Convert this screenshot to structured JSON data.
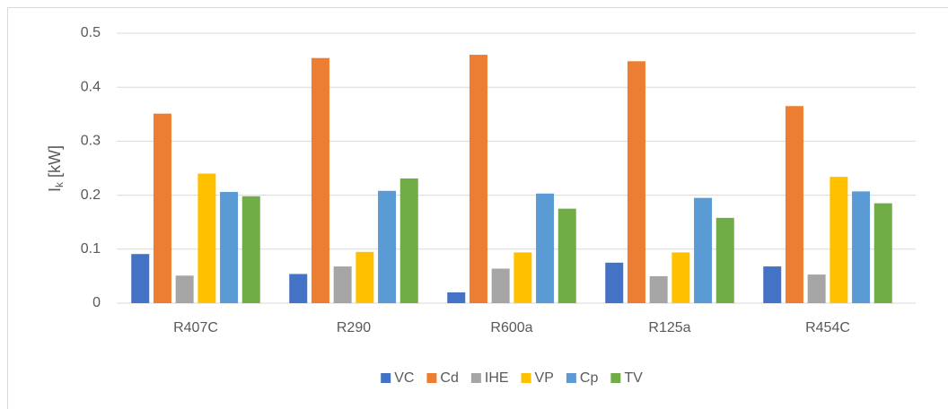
{
  "chart_data": {
    "type": "bar",
    "y_label": [
      "I",
      "k",
      " [kW]"
    ],
    "categories": [
      "R407C",
      "R290",
      "R600a",
      "R125a",
      "R454C"
    ],
    "series": [
      {
        "name": "VC",
        "color": "#4472c4",
        "values": [
          0.091,
          0.054,
          0.02,
          0.075,
          0.068
        ]
      },
      {
        "name": "Cd",
        "color": "#ed7d31",
        "values": [
          0.351,
          0.454,
          0.46,
          0.448,
          0.365
        ]
      },
      {
        "name": "IHE",
        "color": "#a5a5a5",
        "values": [
          0.051,
          0.068,
          0.064,
          0.05,
          0.053
        ]
      },
      {
        "name": "VP",
        "color": "#ffc000",
        "values": [
          0.24,
          0.095,
          0.094,
          0.094,
          0.234
        ]
      },
      {
        "name": "Cp",
        "color": "#5b9bd5",
        "values": [
          0.206,
          0.208,
          0.203,
          0.195,
          0.207
        ]
      },
      {
        "name": "TV",
        "color": "#70ad47",
        "values": [
          0.198,
          0.231,
          0.175,
          0.158,
          0.185
        ]
      }
    ],
    "ylim": [
      0,
      0.5
    ],
    "yticks": [
      0,
      0.1,
      0.2,
      0.3,
      0.4,
      0.5
    ],
    "grid": true,
    "legend": "bottom"
  }
}
